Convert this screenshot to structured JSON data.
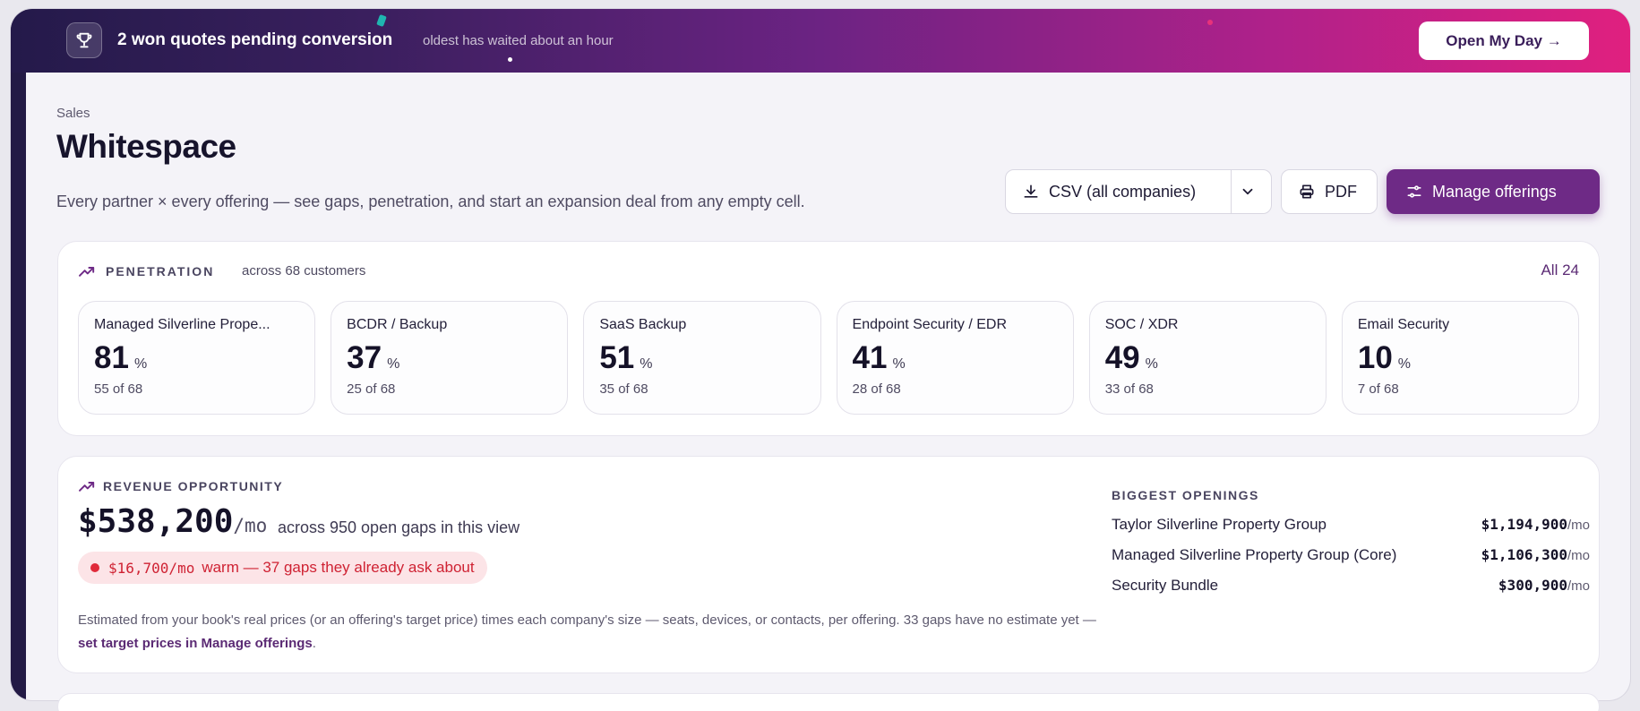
{
  "banner": {
    "title": "2 won quotes pending conversion",
    "subtitle": "oldest has waited about an hour",
    "cta": "Open My Day →",
    "icon": "trophy-icon"
  },
  "header": {
    "breadcrumb": "Sales",
    "title": "Whitespace",
    "description": "Every partner × every offering — see gaps, penetration, and start an expansion deal from any empty cell."
  },
  "toolbar": {
    "csv_label": "CSV (all companies)",
    "pdf_label": "PDF",
    "manage_label": "Manage offerings"
  },
  "penetration": {
    "label": "PENETRATION",
    "sub": "across 68 customers",
    "all_link": "All 24",
    "tiles": [
      {
        "name": "Managed Silverline Prope...",
        "pct": "81",
        "count": "55 of 68"
      },
      {
        "name": "BCDR / Backup",
        "pct": "37",
        "count": "25 of 68"
      },
      {
        "name": "SaaS Backup",
        "pct": "51",
        "count": "35 of 68"
      },
      {
        "name": "Endpoint Security / EDR",
        "pct": "41",
        "count": "28 of 68"
      },
      {
        "name": "SOC / XDR",
        "pct": "49",
        "count": "33 of 68"
      },
      {
        "name": "Email Security",
        "pct": "10",
        "count": "7 of 68"
      }
    ],
    "pct_sign": "%"
  },
  "revenue": {
    "label": "REVENUE OPPORTUNITY",
    "amount": "$538,200",
    "unit": "/mo",
    "desc": "across 950 open gaps in this view",
    "warm_amount": "$16,700/mo",
    "warm_text": "warm — 37 gaps they already ask about",
    "note": "Estimated from your book's real prices (or an offering's target price) times each company's size — seats, devices, or contacts, per offering. 33 gaps have no estimate yet —",
    "note_link": "set target prices in Manage offerings",
    "note_end": ".",
    "openings_label": "BIGGEST OPENINGS",
    "openings": [
      {
        "name": "Taylor Silverline Property Group",
        "value": "$1,194,900",
        "unit": "/mo"
      },
      {
        "name": "Managed Silverline Property Group (Core)",
        "value": "$1,106,300",
        "unit": "/mo"
      },
      {
        "name": "Security Bundle",
        "value": "$300,900",
        "unit": "/mo"
      }
    ]
  },
  "colors": {
    "accent": "#6e2a86",
    "warm": "#cf2233"
  }
}
